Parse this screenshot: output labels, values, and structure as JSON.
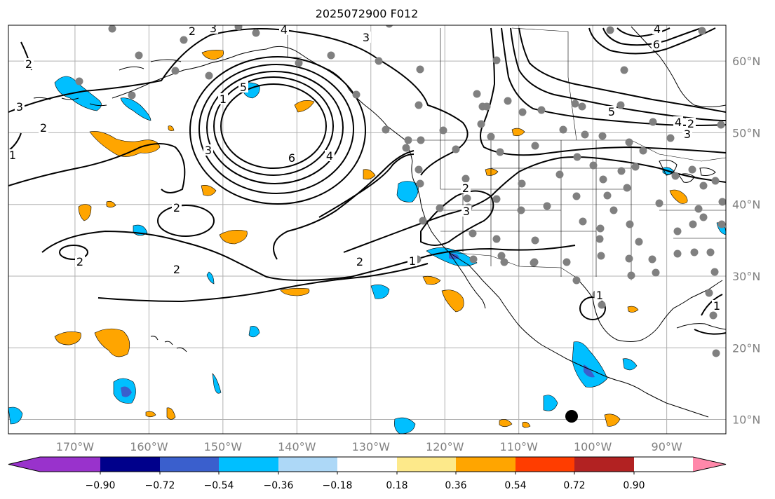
{
  "title": "2025072900 F012",
  "map": {
    "lon_range": [
      -179,
      -82
    ],
    "lat_range": [
      8,
      65
    ],
    "lon_ticks": [
      "170°W",
      "160°W",
      "150°W",
      "140°W",
      "130°W",
      "120°W",
      "110°W",
      "100°W",
      "90°W"
    ],
    "lat_ticks": [
      "10°N",
      "20°N",
      "30°N",
      "40°N",
      "50°N",
      "60°N"
    ],
    "grid": true,
    "contour_labels": [
      "2",
      "3",
      "4",
      "1",
      "5",
      "6",
      "4",
      "6",
      "5",
      "4",
      "3",
      "3",
      "2",
      "1",
      "2",
      "2",
      "2",
      "2",
      "2",
      "2",
      "3",
      "4",
      "1",
      "1",
      "3",
      "3",
      "1",
      "2"
    ]
  },
  "colorbar": {
    "orientation": "horizontal",
    "extend": "both",
    "colors": [
      "#9932cc",
      "#00008b",
      "#3a5fcd",
      "#00bfff",
      "#add8f7",
      "#ffffff",
      "#fde98a",
      "#ffa500",
      "#ff3d00",
      "#b22222",
      "#ff88aa"
    ],
    "tick_labels": [
      "−0.90",
      "−0.72",
      "−0.54",
      "−0.36",
      "−0.18",
      "0.18",
      "0.36",
      "0.54",
      "0.72",
      "0.90"
    ]
  }
}
